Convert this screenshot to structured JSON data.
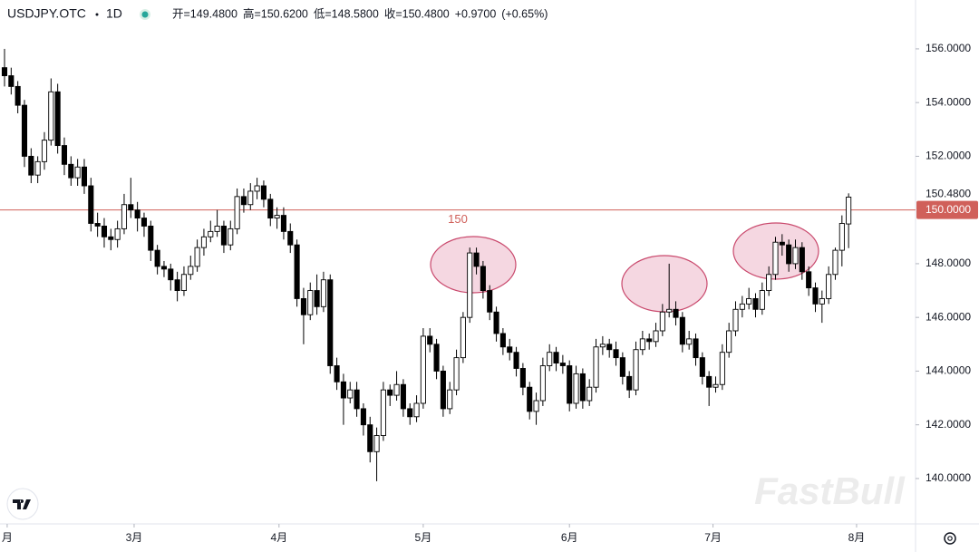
{
  "chart_data": {
    "type": "candlestick",
    "symbol": "USDJPY.OTC",
    "interval": "1D",
    "legend": [
      "开=149.4800",
      "高=150.6200",
      "低=148.5800",
      "收=150.4800",
      "+0.9700",
      "(+0.65%)"
    ],
    "watermark": "FastBull",
    "up_color": "#ffffff",
    "down_color": "#000000",
    "wick_color": "#000000",
    "ohlc": [
      [
        155.3,
        156.0,
        154.6,
        155.0
      ],
      [
        155.0,
        155.3,
        154.3,
        154.6
      ],
      [
        154.6,
        154.8,
        153.6,
        153.9
      ],
      [
        153.9,
        154.1,
        151.6,
        152.0
      ],
      [
        152.0,
        152.3,
        151.0,
        151.3
      ],
      [
        151.3,
        152.0,
        151.0,
        151.8
      ],
      [
        151.8,
        152.9,
        151.5,
        152.6
      ],
      [
        152.6,
        154.9,
        152.4,
        154.4
      ],
      [
        154.4,
        154.7,
        152.1,
        152.4
      ],
      [
        152.4,
        152.7,
        151.3,
        151.7
      ],
      [
        151.7,
        152.0,
        150.9,
        151.2
      ],
      [
        151.2,
        151.9,
        150.9,
        151.6
      ],
      [
        151.6,
        151.9,
        150.6,
        150.9
      ],
      [
        150.9,
        151.2,
        149.2,
        149.5
      ],
      [
        149.5,
        149.9,
        149.0,
        149.4
      ],
      [
        149.4,
        149.7,
        148.6,
        149.0
      ],
      [
        149.0,
        149.3,
        148.5,
        148.9
      ],
      [
        148.9,
        149.6,
        148.6,
        149.3
      ],
      [
        149.3,
        150.6,
        149.1,
        150.2
      ],
      [
        150.2,
        151.2,
        149.7,
        150.0
      ],
      [
        150.0,
        150.3,
        149.2,
        149.7
      ],
      [
        149.7,
        149.9,
        149.0,
        149.4
      ],
      [
        149.4,
        149.6,
        148.1,
        148.5
      ],
      [
        148.5,
        148.7,
        147.6,
        147.9
      ],
      [
        147.9,
        148.1,
        147.5,
        147.8
      ],
      [
        147.8,
        148.0,
        147.0,
        147.4
      ],
      [
        147.4,
        147.7,
        146.6,
        147.0
      ],
      [
        147.0,
        147.9,
        146.8,
        147.6
      ],
      [
        147.6,
        148.3,
        147.4,
        147.9
      ],
      [
        147.9,
        148.9,
        147.7,
        148.6
      ],
      [
        148.6,
        149.3,
        148.3,
        149.0
      ],
      [
        149.0,
        149.6,
        148.8,
        149.2
      ],
      [
        149.2,
        150.0,
        149.0,
        149.4
      ],
      [
        149.4,
        149.6,
        148.4,
        148.7
      ],
      [
        148.7,
        149.6,
        148.5,
        149.3
      ],
      [
        149.3,
        150.8,
        149.1,
        150.5
      ],
      [
        150.5,
        150.8,
        149.9,
        150.2
      ],
      [
        150.2,
        151.0,
        150.0,
        150.7
      ],
      [
        150.7,
        151.2,
        150.4,
        150.9
      ],
      [
        150.9,
        151.1,
        150.1,
        150.4
      ],
      [
        150.4,
        150.6,
        149.4,
        149.7
      ],
      [
        149.7,
        150.1,
        149.3,
        149.8
      ],
      [
        149.8,
        150.1,
        148.9,
        149.2
      ],
      [
        149.2,
        149.5,
        148.4,
        148.7
      ],
      [
        148.7,
        148.9,
        146.4,
        146.7
      ],
      [
        146.7,
        147.1,
        145.0,
        146.1
      ],
      [
        146.1,
        147.3,
        145.9,
        147.0
      ],
      [
        147.0,
        147.6,
        146.1,
        146.4
      ],
      [
        146.4,
        147.7,
        146.2,
        147.4
      ],
      [
        147.4,
        147.6,
        143.9,
        144.2
      ],
      [
        144.2,
        144.5,
        143.3,
        143.6
      ],
      [
        143.6,
        143.9,
        142.0,
        143.0
      ],
      [
        143.0,
        143.6,
        142.8,
        143.3
      ],
      [
        143.3,
        143.6,
        142.3,
        142.6
      ],
      [
        142.6,
        142.8,
        141.6,
        142.0
      ],
      [
        142.0,
        142.3,
        140.6,
        141.0
      ],
      [
        141.0,
        141.9,
        139.9,
        141.6
      ],
      [
        141.6,
        143.6,
        141.4,
        143.3
      ],
      [
        143.3,
        143.5,
        142.7,
        143.1
      ],
      [
        143.1,
        144.0,
        142.9,
        143.5
      ],
      [
        143.5,
        143.7,
        142.3,
        142.6
      ],
      [
        142.6,
        142.8,
        142.0,
        142.3
      ],
      [
        142.3,
        143.1,
        142.1,
        142.8
      ],
      [
        142.8,
        145.6,
        142.6,
        145.3
      ],
      [
        145.3,
        145.6,
        144.7,
        145.0
      ],
      [
        145.0,
        145.2,
        143.7,
        144.0
      ],
      [
        144.0,
        144.2,
        142.3,
        142.6
      ],
      [
        142.6,
        143.6,
        142.4,
        143.3
      ],
      [
        143.3,
        144.8,
        143.1,
        144.5
      ],
      [
        144.5,
        146.2,
        144.3,
        146.0
      ],
      [
        146.0,
        148.6,
        145.8,
        148.4
      ],
      [
        148.4,
        148.6,
        147.6,
        147.9
      ],
      [
        147.9,
        148.1,
        146.7,
        147.0
      ],
      [
        147.0,
        147.2,
        145.9,
        146.2
      ],
      [
        146.2,
        146.4,
        145.1,
        145.4
      ],
      [
        145.4,
        145.6,
        144.6,
        144.9
      ],
      [
        144.9,
        145.2,
        144.4,
        144.7
      ],
      [
        144.7,
        144.9,
        143.8,
        144.1
      ],
      [
        144.1,
        144.3,
        143.1,
        143.4
      ],
      [
        143.4,
        143.6,
        142.2,
        142.5
      ],
      [
        142.5,
        143.2,
        142.0,
        142.9
      ],
      [
        142.9,
        144.5,
        142.7,
        144.2
      ],
      [
        144.2,
        145.0,
        144.0,
        144.7
      ],
      [
        144.7,
        144.9,
        144.0,
        144.3
      ],
      [
        144.3,
        144.6,
        143.9,
        144.2
      ],
      [
        144.2,
        144.4,
        142.5,
        142.8
      ],
      [
        142.8,
        144.2,
        142.6,
        143.9
      ],
      [
        143.9,
        144.1,
        142.6,
        142.9
      ],
      [
        142.9,
        143.7,
        142.7,
        143.4
      ],
      [
        143.4,
        145.2,
        143.2,
        144.9
      ],
      [
        144.9,
        145.3,
        144.6,
        145.0
      ],
      [
        145.0,
        145.2,
        144.5,
        144.8
      ],
      [
        144.8,
        145.1,
        144.2,
        144.5
      ],
      [
        144.5,
        144.7,
        143.5,
        143.8
      ],
      [
        143.8,
        144.0,
        143.0,
        143.3
      ],
      [
        143.3,
        145.1,
        143.1,
        144.8
      ],
      [
        144.8,
        145.5,
        144.6,
        145.2
      ],
      [
        145.2,
        145.4,
        144.8,
        145.1
      ],
      [
        145.1,
        145.8,
        144.9,
        145.5
      ],
      [
        145.5,
        146.5,
        145.3,
        146.2
      ],
      [
        146.2,
        148.0,
        146.0,
        146.3
      ],
      [
        146.3,
        146.6,
        145.7,
        146.0
      ],
      [
        146.0,
        146.2,
        144.7,
        145.0
      ],
      [
        145.0,
        145.5,
        144.8,
        145.2
      ],
      [
        145.2,
        145.4,
        144.2,
        144.5
      ],
      [
        144.5,
        144.7,
        143.5,
        143.8
      ],
      [
        143.8,
        144.0,
        142.7,
        143.4
      ],
      [
        143.4,
        143.8,
        143.2,
        143.5
      ],
      [
        143.5,
        145.0,
        143.3,
        144.7
      ],
      [
        144.7,
        145.8,
        144.5,
        145.5
      ],
      [
        145.5,
        146.6,
        145.3,
        146.3
      ],
      [
        146.3,
        146.8,
        146.0,
        146.5
      ],
      [
        146.5,
        147.1,
        146.3,
        146.7
      ],
      [
        146.7,
        146.9,
        146.0,
        146.3
      ],
      [
        146.3,
        147.3,
        146.1,
        147.0
      ],
      [
        147.0,
        147.9,
        146.8,
        147.6
      ],
      [
        147.6,
        149.0,
        147.4,
        148.8
      ],
      [
        148.8,
        149.1,
        148.3,
        148.7
      ],
      [
        148.7,
        148.9,
        147.7,
        148.0
      ],
      [
        148.0,
        148.9,
        147.8,
        148.6
      ],
      [
        148.6,
        148.8,
        147.4,
        147.7
      ],
      [
        147.7,
        147.9,
        146.8,
        147.1
      ],
      [
        147.1,
        147.3,
        146.2,
        146.5
      ],
      [
        146.5,
        147.0,
        145.8,
        146.7
      ],
      [
        146.7,
        147.9,
        146.5,
        147.6
      ],
      [
        147.6,
        148.6,
        147.4,
        148.5
      ],
      [
        148.5,
        149.8,
        147.9,
        149.5
      ],
      [
        149.48,
        150.62,
        148.58,
        150.48
      ]
    ],
    "xlim": [
      -0.68,
      136.8
    ],
    "xticks": [
      {
        "value": 0.4,
        "label": "月"
      },
      {
        "value": 19.5,
        "label": "3月"
      },
      {
        "value": 41.3,
        "label": "4月"
      },
      {
        "value": 63,
        "label": "5月"
      },
      {
        "value": 85,
        "label": "6月"
      },
      {
        "value": 106.6,
        "label": "7月"
      },
      {
        "value": 128.2,
        "label": "8月"
      }
    ],
    "ylim": [
      138.31,
      157.82
    ],
    "yticks": [
      {
        "value": 140,
        "label": "140.0000"
      },
      {
        "value": 142,
        "label": "142.0000"
      },
      {
        "value": 144,
        "label": "144.0000"
      },
      {
        "value": 146,
        "label": "146.0000"
      },
      {
        "value": 148,
        "label": "148.0000"
      },
      {
        "value": 150,
        "label": "150.0000"
      },
      {
        "value": 152,
        "label": "152.0000"
      },
      {
        "value": 154,
        "label": "154.0000"
      },
      {
        "value": 156,
        "label": "156.0000"
      }
    ],
    "last_price": {
      "value": 150.48,
      "label": "150.4800"
    },
    "hline": {
      "value": 150,
      "label": "150.0000",
      "annotation": "150",
      "color": "#d0605a"
    }
  }
}
